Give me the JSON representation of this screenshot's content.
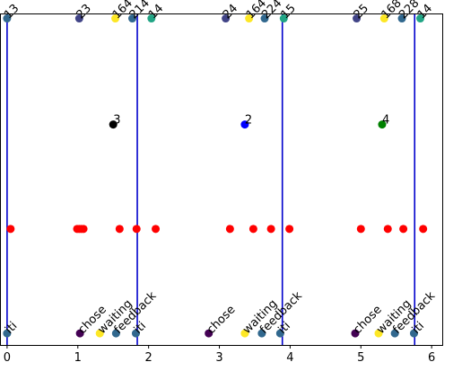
{
  "chart_data": {
    "type": "scatter",
    "xlim": [
      -0.1,
      6.15
    ],
    "ylim": [
      0,
      1
    ],
    "grid": false,
    "xticks": [
      "0",
      "1",
      "2",
      "3",
      "4",
      "5",
      "6"
    ],
    "vlines": {
      "color": "#0000cc",
      "x": [
        0.0,
        1.84,
        3.89,
        5.76
      ]
    },
    "top_markers": [
      {
        "x": 0.0,
        "label": "13",
        "color": "#31688e"
      },
      {
        "x": 1.02,
        "label": "23",
        "color": "#414487"
      },
      {
        "x": 1.53,
        "label": "164",
        "color": "#fde725"
      },
      {
        "x": 1.77,
        "label": "214",
        "color": "#31688e"
      },
      {
        "x": 2.04,
        "label": "14",
        "color": "#21a585"
      },
      {
        "x": 3.09,
        "label": "24",
        "color": "#414487"
      },
      {
        "x": 3.42,
        "label": "164",
        "color": "#fde725"
      },
      {
        "x": 3.64,
        "label": "224",
        "color": "#31688e"
      },
      {
        "x": 3.91,
        "label": "15",
        "color": "#21a585"
      },
      {
        "x": 4.94,
        "label": "25",
        "color": "#414487"
      },
      {
        "x": 5.33,
        "label": "168",
        "color": "#fde725"
      },
      {
        "x": 5.58,
        "label": "228",
        "color": "#31688e"
      },
      {
        "x": 5.84,
        "label": "14",
        "color": "#21a585"
      }
    ],
    "middle_markers": [
      {
        "x": 1.5,
        "label": "3",
        "color": "#000000"
      },
      {
        "x": 3.36,
        "label": "2",
        "color": "#0000ff"
      },
      {
        "x": 5.3,
        "label": "4",
        "color": "#008000"
      }
    ],
    "red_points": {
      "color": "#ff0000",
      "x": [
        0.05,
        0.99,
        1.02,
        1.05,
        1.08,
        1.59,
        1.83,
        2.1,
        3.15,
        3.48,
        3.73,
        3.99,
        5.0,
        5.38,
        5.6,
        5.88
      ]
    },
    "bottom_markers": [
      {
        "x": 0.0,
        "label": "iti",
        "color": "#31688e"
      },
      {
        "x": 1.03,
        "label": "chose",
        "color": "#440154"
      },
      {
        "x": 1.31,
        "label": "waiting",
        "color": "#fde725"
      },
      {
        "x": 1.54,
        "label": "feedback",
        "color": "#31688e"
      },
      {
        "x": 1.82,
        "label": "iti",
        "color": "#31688e"
      },
      {
        "x": 2.85,
        "label": "chose",
        "color": "#440154"
      },
      {
        "x": 3.36,
        "label": "waiting",
        "color": "#fde725"
      },
      {
        "x": 3.6,
        "label": "feedback",
        "color": "#31688e"
      },
      {
        "x": 3.86,
        "label": "iti",
        "color": "#31688e"
      },
      {
        "x": 4.92,
        "label": "chose",
        "color": "#440154"
      },
      {
        "x": 5.25,
        "label": "waiting",
        "color": "#fde725"
      },
      {
        "x": 5.48,
        "label": "feedback",
        "color": "#31688e"
      },
      {
        "x": 5.75,
        "label": "iti",
        "color": "#31688e"
      }
    ]
  }
}
